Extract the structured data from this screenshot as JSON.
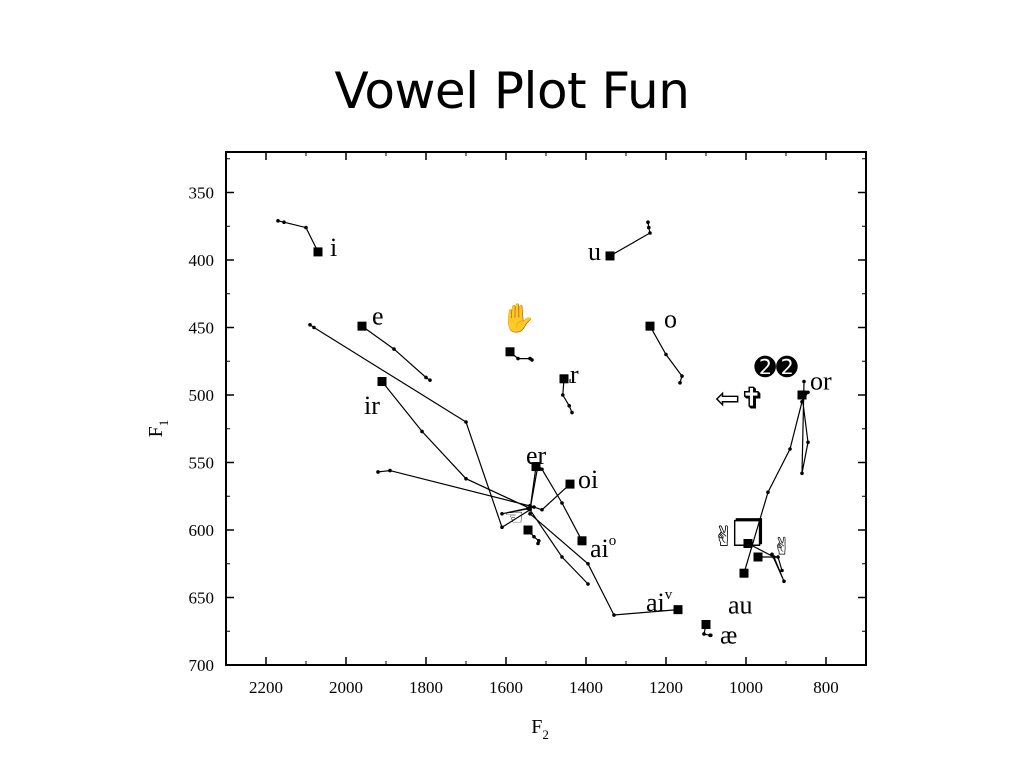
{
  "slide": {
    "title": "Vowel Plot Fun"
  },
  "chart_data": {
    "type": "scatter",
    "xlabel": {
      "main": "F",
      "sub": "2"
    },
    "ylabel": {
      "main": "F",
      "sub": "1"
    },
    "xlim": [
      2300,
      700
    ],
    "ylim": [
      700,
      320
    ],
    "x_reversed": true,
    "y_reversed": true,
    "x_ticks": [
      2200,
      2000,
      1800,
      1600,
      1400,
      1200,
      1000,
      800
    ],
    "y_ticks": [
      350,
      400,
      450,
      500,
      550,
      600,
      650,
      700
    ],
    "grid": false,
    "legend": "none",
    "vowels": [
      {
        "label": "i",
        "sup": "",
        "f2": 2070,
        "f1": 394,
        "label_f2": 2040,
        "label_f1": 391,
        "trajectory": [
          [
            2070,
            394
          ],
          [
            2100,
            376
          ],
          [
            2155,
            372
          ],
          [
            2170,
            371
          ]
        ]
      },
      {
        "label": "u",
        "sup": "",
        "f2": 1340,
        "f1": 397,
        "label_f2": 1395,
        "label_f1": 394,
        "trajectory": [
          [
            1340,
            397
          ],
          [
            1240,
            380
          ],
          [
            1243,
            376
          ],
          [
            1245,
            372
          ]
        ]
      },
      {
        "label": "e",
        "sup": "",
        "f2": 1960,
        "f1": 449,
        "label_f2": 1935,
        "label_f1": 442,
        "trajectory": [
          [
            1960,
            449
          ],
          [
            1880,
            466
          ],
          [
            1800,
            487
          ],
          [
            1790,
            489
          ]
        ]
      },
      {
        "label": "o",
        "sup": "",
        "f2": 1240,
        "f1": 449,
        "label_f2": 1205,
        "label_f1": 444,
        "trajectory": [
          [
            1240,
            449
          ],
          [
            1200,
            470
          ],
          [
            1160,
            486
          ],
          [
            1165,
            491
          ]
        ]
      },
      {
        "label": "r",
        "sup": "",
        "f2": 1455,
        "f1": 488,
        "label_f2": 1440,
        "label_f1": 485,
        "trajectory": [
          [
            1455,
            488
          ],
          [
            1458,
            500
          ],
          [
            1442,
            508
          ],
          [
            1435,
            513
          ]
        ]
      },
      {
        "label": "ir",
        "sup": "",
        "f2": 1910,
        "f1": 490,
        "label_f2": 1955,
        "label_f1": 508,
        "trajectory": [
          [
            1910,
            490
          ],
          [
            1810,
            527
          ],
          [
            1700,
            562
          ],
          [
            1540,
            584
          ],
          [
            1610,
            588
          ],
          [
            1530,
            583
          ],
          [
            1890,
            556
          ],
          [
            1920,
            557
          ]
        ]
      },
      {
        "label": "er",
        "sup": "",
        "f2": 1525,
        "f1": 553,
        "label_f2": 1550,
        "label_f1": 545,
        "trajectory": [
          [
            1525,
            553
          ],
          [
            1540,
            585
          ],
          [
            1610,
            598
          ],
          [
            1700,
            520
          ],
          [
            2080,
            450
          ],
          [
            2090,
            448
          ]
        ]
      },
      {
        "label": "oi",
        "sup": "",
        "f2": 1440,
        "f1": 566,
        "label_f2": 1420,
        "label_f1": 563,
        "trajectory": [
          [
            1440,
            566
          ],
          [
            1510,
            585
          ],
          [
            1540,
            582
          ],
          [
            1545,
            584
          ]
        ]
      },
      {
        "label": "ai",
        "sup": "o",
        "f2": 1410,
        "f1": 608,
        "label_f2": 1390,
        "label_f1": 614,
        "trajectory": [
          [
            1410,
            608
          ],
          [
            1460,
            580
          ],
          [
            1510,
            555
          ],
          [
            1520,
            552
          ],
          [
            1540,
            585
          ],
          [
            1460,
            620
          ],
          [
            1395,
            640
          ]
        ]
      },
      {
        "label": "ai",
        "sup": "v",
        "f2": 1170,
        "f1": 659,
        "label_f2": 1250,
        "label_f1": 654,
        "trajectory": [
          [
            1170,
            659
          ],
          [
            1330,
            663
          ],
          [
            1395,
            625
          ],
          [
            1540,
            588
          ]
        ]
      },
      {
        "label": "æ",
        "sup": "",
        "f2": 1100,
        "f1": 670,
        "label_f2": 1065,
        "label_f1": 678,
        "trajectory": [
          [
            1100,
            670
          ],
          [
            1105,
            677
          ],
          [
            1090,
            678
          ],
          [
            1088,
            678
          ]
        ]
      },
      {
        "label": "au",
        "sup": "",
        "f2": 1005,
        "f1": 632,
        "label_f2": 1045,
        "label_f1": 656,
        "trajectory": [
          [
            1005,
            632
          ],
          [
            945,
            572
          ],
          [
            890,
            540
          ],
          [
            860,
            505
          ],
          [
            845,
            498
          ]
        ]
      },
      {
        "label": "or",
        "sup": "",
        "f2": 860,
        "f1": 500,
        "label_f2": 840,
        "label_f1": 490,
        "trajectory": [
          [
            860,
            500
          ],
          [
            845,
            535
          ],
          [
            860,
            558
          ],
          [
            855,
            490
          ]
        ]
      }
    ],
    "unlabeled_points": [
      {
        "glyph": "hand-icon",
        "f2": 1590,
        "f1": 468,
        "trajectory": [
          [
            1590,
            468
          ],
          [
            1570,
            473
          ],
          [
            1540,
            473
          ],
          [
            1535,
            474
          ]
        ]
      },
      {
        "glyph": "pointing-hand-icon",
        "f2": 1545,
        "f1": 600,
        "trajectory": [
          [
            1545,
            600
          ],
          [
            1530,
            605
          ],
          [
            1518,
            608
          ],
          [
            1520,
            610
          ]
        ]
      },
      {
        "glyph": "arrow-cross-icon",
        "f2": 1030,
        "f1": 495,
        "trajectory": []
      },
      {
        "glyph": "victory-hand-icon",
        "f2": 995,
        "f1": 610,
        "trajectory": [
          [
            995,
            610
          ],
          [
            930,
            620
          ],
          [
            905,
            638
          ],
          [
            935,
            618
          ]
        ]
      },
      {
        "glyph": "victory-hand-icon",
        "f2": 970,
        "f1": 620,
        "trajectory": [
          [
            970,
            620
          ],
          [
            920,
            620
          ],
          [
            910,
            630
          ]
        ]
      }
    ],
    "glyphs": {
      "hand-icon": "✋",
      "pointing-hand-icon": "☜",
      "arrow-cross-icon": "⇦✞",
      "victory-hand-icon": "✌",
      "square-icon": "❐",
      "circle-two-icon": "➋➋"
    }
  }
}
